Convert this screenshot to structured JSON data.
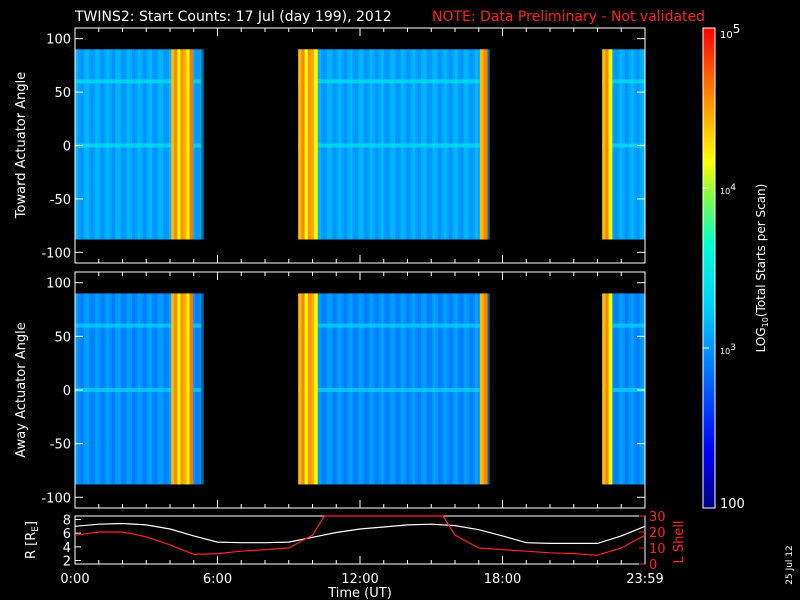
{
  "header": {
    "title": "TWINS2: Start Counts: 17 Jul (day 199), 2012",
    "note": "NOTE: Data Preliminary - Not validated",
    "note_color": "#ff2020"
  },
  "footer": {
    "xlabel": "Time (UT)",
    "date_stamp": "25 Jul 12"
  },
  "colors": {
    "background": "#000000",
    "no_data": "#000000",
    "r_line": "#ffffff",
    "lshell_line": "#ff2020"
  },
  "chart_data": [
    {
      "type": "heatmap",
      "ylabel": "Toward Actuator Angle",
      "ylim": [
        -110,
        110
      ],
      "ytick_values": [
        100,
        50,
        0,
        -50,
        -100
      ],
      "ytick_labels": [
        "100",
        "50",
        "0",
        "-50",
        "-100"
      ],
      "xlim": [
        0,
        24
      ],
      "xtick_labels": [
        "0:00",
        "6:00",
        "12:00",
        "18:00",
        "23:59"
      ],
      "data_angle_range": [
        -88,
        90
      ],
      "data_intervals_hours": [
        [
          0,
          5.3
        ],
        [
          9.4,
          17.35
        ],
        [
          22.2,
          24
        ]
      ],
      "baseline_log_counts": 3.1,
      "bright_bands_hours": [
        [
          4.05,
          4.95
        ],
        [
          9.4,
          10.2
        ],
        [
          17.05,
          17.35
        ],
        [
          22.2,
          22.6
        ]
      ],
      "bright_band_log_counts": 4.4
    },
    {
      "type": "heatmap",
      "ylabel": "Away Actuator Angle",
      "ylim": [
        -110,
        110
      ],
      "ytick_values": [
        100,
        50,
        0,
        -50,
        -100
      ],
      "ytick_labels": [
        "100",
        "50",
        "0",
        "-50",
        "-100"
      ],
      "xlim": [
        0,
        24
      ],
      "xtick_labels": [
        "0:00",
        "6:00",
        "12:00",
        "18:00",
        "23:59"
      ],
      "data_angle_range": [
        -88,
        90
      ],
      "data_intervals_hours": [
        [
          0,
          5.3
        ],
        [
          9.4,
          17.35
        ],
        [
          22.2,
          24
        ]
      ],
      "baseline_log_counts": 3.0,
      "bright_bands_hours": [
        [
          4.05,
          4.95
        ],
        [
          9.4,
          10.2
        ],
        [
          17.05,
          17.35
        ],
        [
          22.2,
          22.6
        ]
      ],
      "bright_band_log_counts": 4.4
    },
    {
      "type": "line",
      "ylabel": "R [R",
      "ylabel_sub": "E",
      "ylabel_end": "]",
      "ylabel_right": "L Shell",
      "left_ticks": [
        "2",
        "4",
        "6",
        "8"
      ],
      "left_tick_values": [
        2,
        4,
        6,
        8
      ],
      "right_ticks": [
        "0",
        "10",
        "20",
        "30"
      ],
      "right_tick_values": [
        0,
        10,
        20,
        30
      ],
      "left_ylim": [
        1.5,
        8.5
      ],
      "right_ylim": [
        0,
        30
      ],
      "xtick_labels": [
        "0:00",
        "6:00",
        "12:00",
        "18:00",
        "23:59"
      ],
      "xtick_hours": [
        0,
        6,
        12,
        18,
        24
      ],
      "series": [
        {
          "name": "R",
          "axis": "left",
          "x": [
            0,
            1,
            2,
            3,
            4,
            5,
            6,
            7,
            8,
            9,
            10,
            11,
            12,
            13,
            14,
            15,
            16,
            17,
            18,
            19,
            20,
            21,
            22,
            23,
            24
          ],
          "values": [
            7.0,
            7.3,
            7.4,
            7.2,
            6.6,
            5.6,
            4.7,
            4.6,
            4.6,
            4.7,
            5.4,
            6.1,
            6.6,
            6.9,
            7.2,
            7.3,
            7.1,
            6.5,
            5.6,
            4.6,
            4.5,
            4.5,
            4.5,
            5.6,
            7.0
          ]
        },
        {
          "name": "L Shell",
          "axis": "right",
          "x": [
            0,
            1,
            2,
            3,
            4,
            5,
            6,
            7,
            8,
            9,
            10,
            10.5,
            11,
            15,
            15.5,
            16,
            17,
            18,
            19,
            20,
            21,
            22,
            23,
            24
          ],
          "values": [
            18,
            20,
            20,
            17,
            12,
            6,
            6.5,
            8,
            9,
            10,
            18,
            30,
            30,
            30,
            30,
            18,
            10,
            9,
            8,
            7,
            6.5,
            5.5,
            10,
            18
          ]
        }
      ]
    }
  ],
  "colorbar": {
    "label_main": "LOG",
    "label_sub": "10",
    "label_rest": "(Total Starts per Scan)",
    "top_label_base": "10",
    "top_label_exp": "5",
    "mid_labels": [
      {
        "base": "10",
        "exp": "4",
        "value": 4
      },
      {
        "base": "10",
        "exp": "3",
        "value": 3
      }
    ],
    "bottom_label": "100",
    "range": [
      2,
      5
    ]
  }
}
